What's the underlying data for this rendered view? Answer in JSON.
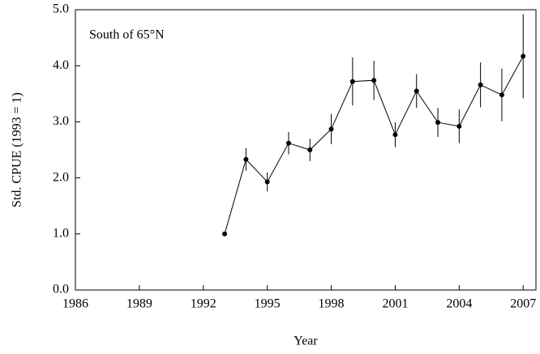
{
  "chart_data": {
    "type": "line",
    "annotation": "South of 65°N",
    "xlabel": "Year",
    "ylabel": "Std. CPUE (1993 = 1)",
    "x": [
      1993,
      1994,
      1995,
      1996,
      1997,
      1998,
      1999,
      2000,
      2001,
      2002,
      2003,
      2004,
      2005,
      2006,
      2007
    ],
    "series": [
      {
        "color": "#000000",
        "values": [
          1.0,
          2.33,
          1.93,
          2.62,
          2.5,
          2.87,
          3.72,
          3.74,
          2.77,
          3.55,
          2.99,
          2.92,
          3.66,
          3.48,
          4.17
        ],
        "errors": [
          0,
          0.2,
          0.17,
          0.2,
          0.2,
          0.27,
          0.43,
          0.35,
          0.22,
          0.3,
          0.26,
          0.3,
          0.4,
          0.47,
          0.75
        ]
      }
    ],
    "xlim": [
      1986,
      2007.6
    ],
    "ylim": [
      0,
      5
    ],
    "xticks": [
      1986,
      1989,
      1992,
      1995,
      1998,
      2001,
      2004,
      2007
    ],
    "yticks": [
      {
        "value": 0,
        "label": "0.0"
      },
      {
        "value": 1,
        "label": "1.0"
      },
      {
        "value": 2,
        "label": "2.0"
      },
      {
        "value": 3,
        "label": "3.0"
      },
      {
        "value": 4,
        "label": "4.0"
      },
      {
        "value": 5,
        "label": "5.0"
      }
    ],
    "grid": false
  }
}
